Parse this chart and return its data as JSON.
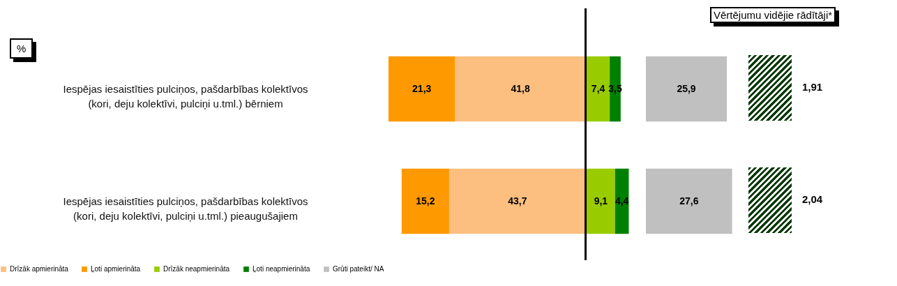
{
  "chart_data": [
    {
      "type": "bar",
      "orientation": "horizontal",
      "stacked": true,
      "categories": [
        "Iespējas iesaistīties pulciņos, pašdarbības kolektīvos (kori, deju kolektīvi, pulciņi u.tml.) bērniem",
        "Iespējas iesaistīties pulciņos, pašdarbības kolektīvos (kori, deju kolektīvi, pulciņi u.tml.) pieaugušajiem"
      ],
      "xlim": [
        63.1,
        0
      ],
      "series": [
        {
          "name": "Drīzāk apmierināta",
          "color": "#fcbf80",
          "values": [
            41.8,
            43.7
          ],
          "value_labels": [
            "41,8",
            "43,7"
          ]
        },
        {
          "name": "Ļoti apmierināta",
          "color": "#ff9900",
          "values": [
            21.3,
            15.2
          ],
          "value_labels": [
            "21,3",
            "15,2"
          ]
        }
      ],
      "legend": "bottom",
      "tick_labels": "y",
      "annotations": [
        "%",
        "Vērtējumu vidējie rādītāji*",
        "1,91",
        "2,04"
      ]
    },
    {
      "type": "bar",
      "orientation": "horizontal",
      "stacked": true,
      "categories": [
        null,
        null
      ],
      "series": [
        {
          "name": "Drīzāk neapmierināta",
          "color": "#99cc00",
          "values": [
            7.4,
            9.1
          ],
          "value_labels": [
            "7,4",
            "9,1"
          ]
        },
        {
          "name": "Ļoti neapmierināta",
          "color": "#008000",
          "values": [
            3.5,
            4.4
          ],
          "value_labels": [
            "3,5",
            "4,4"
          ]
        }
      ],
      "legend": "bottom",
      "tick_labels": false
    },
    {
      "type": "bar",
      "orientation": "horizontal",
      "categories": [
        null,
        null
      ],
      "series": [
        {
          "name": "Grūti pateikt/ NA",
          "color": "#c0c0c0",
          "values": [
            25.9,
            27.6
          ],
          "value_labels": [
            "25,9",
            "27,6"
          ]
        }
      ],
      "legend": "bottom",
      "tick_labels": false
    }
  ]
}
